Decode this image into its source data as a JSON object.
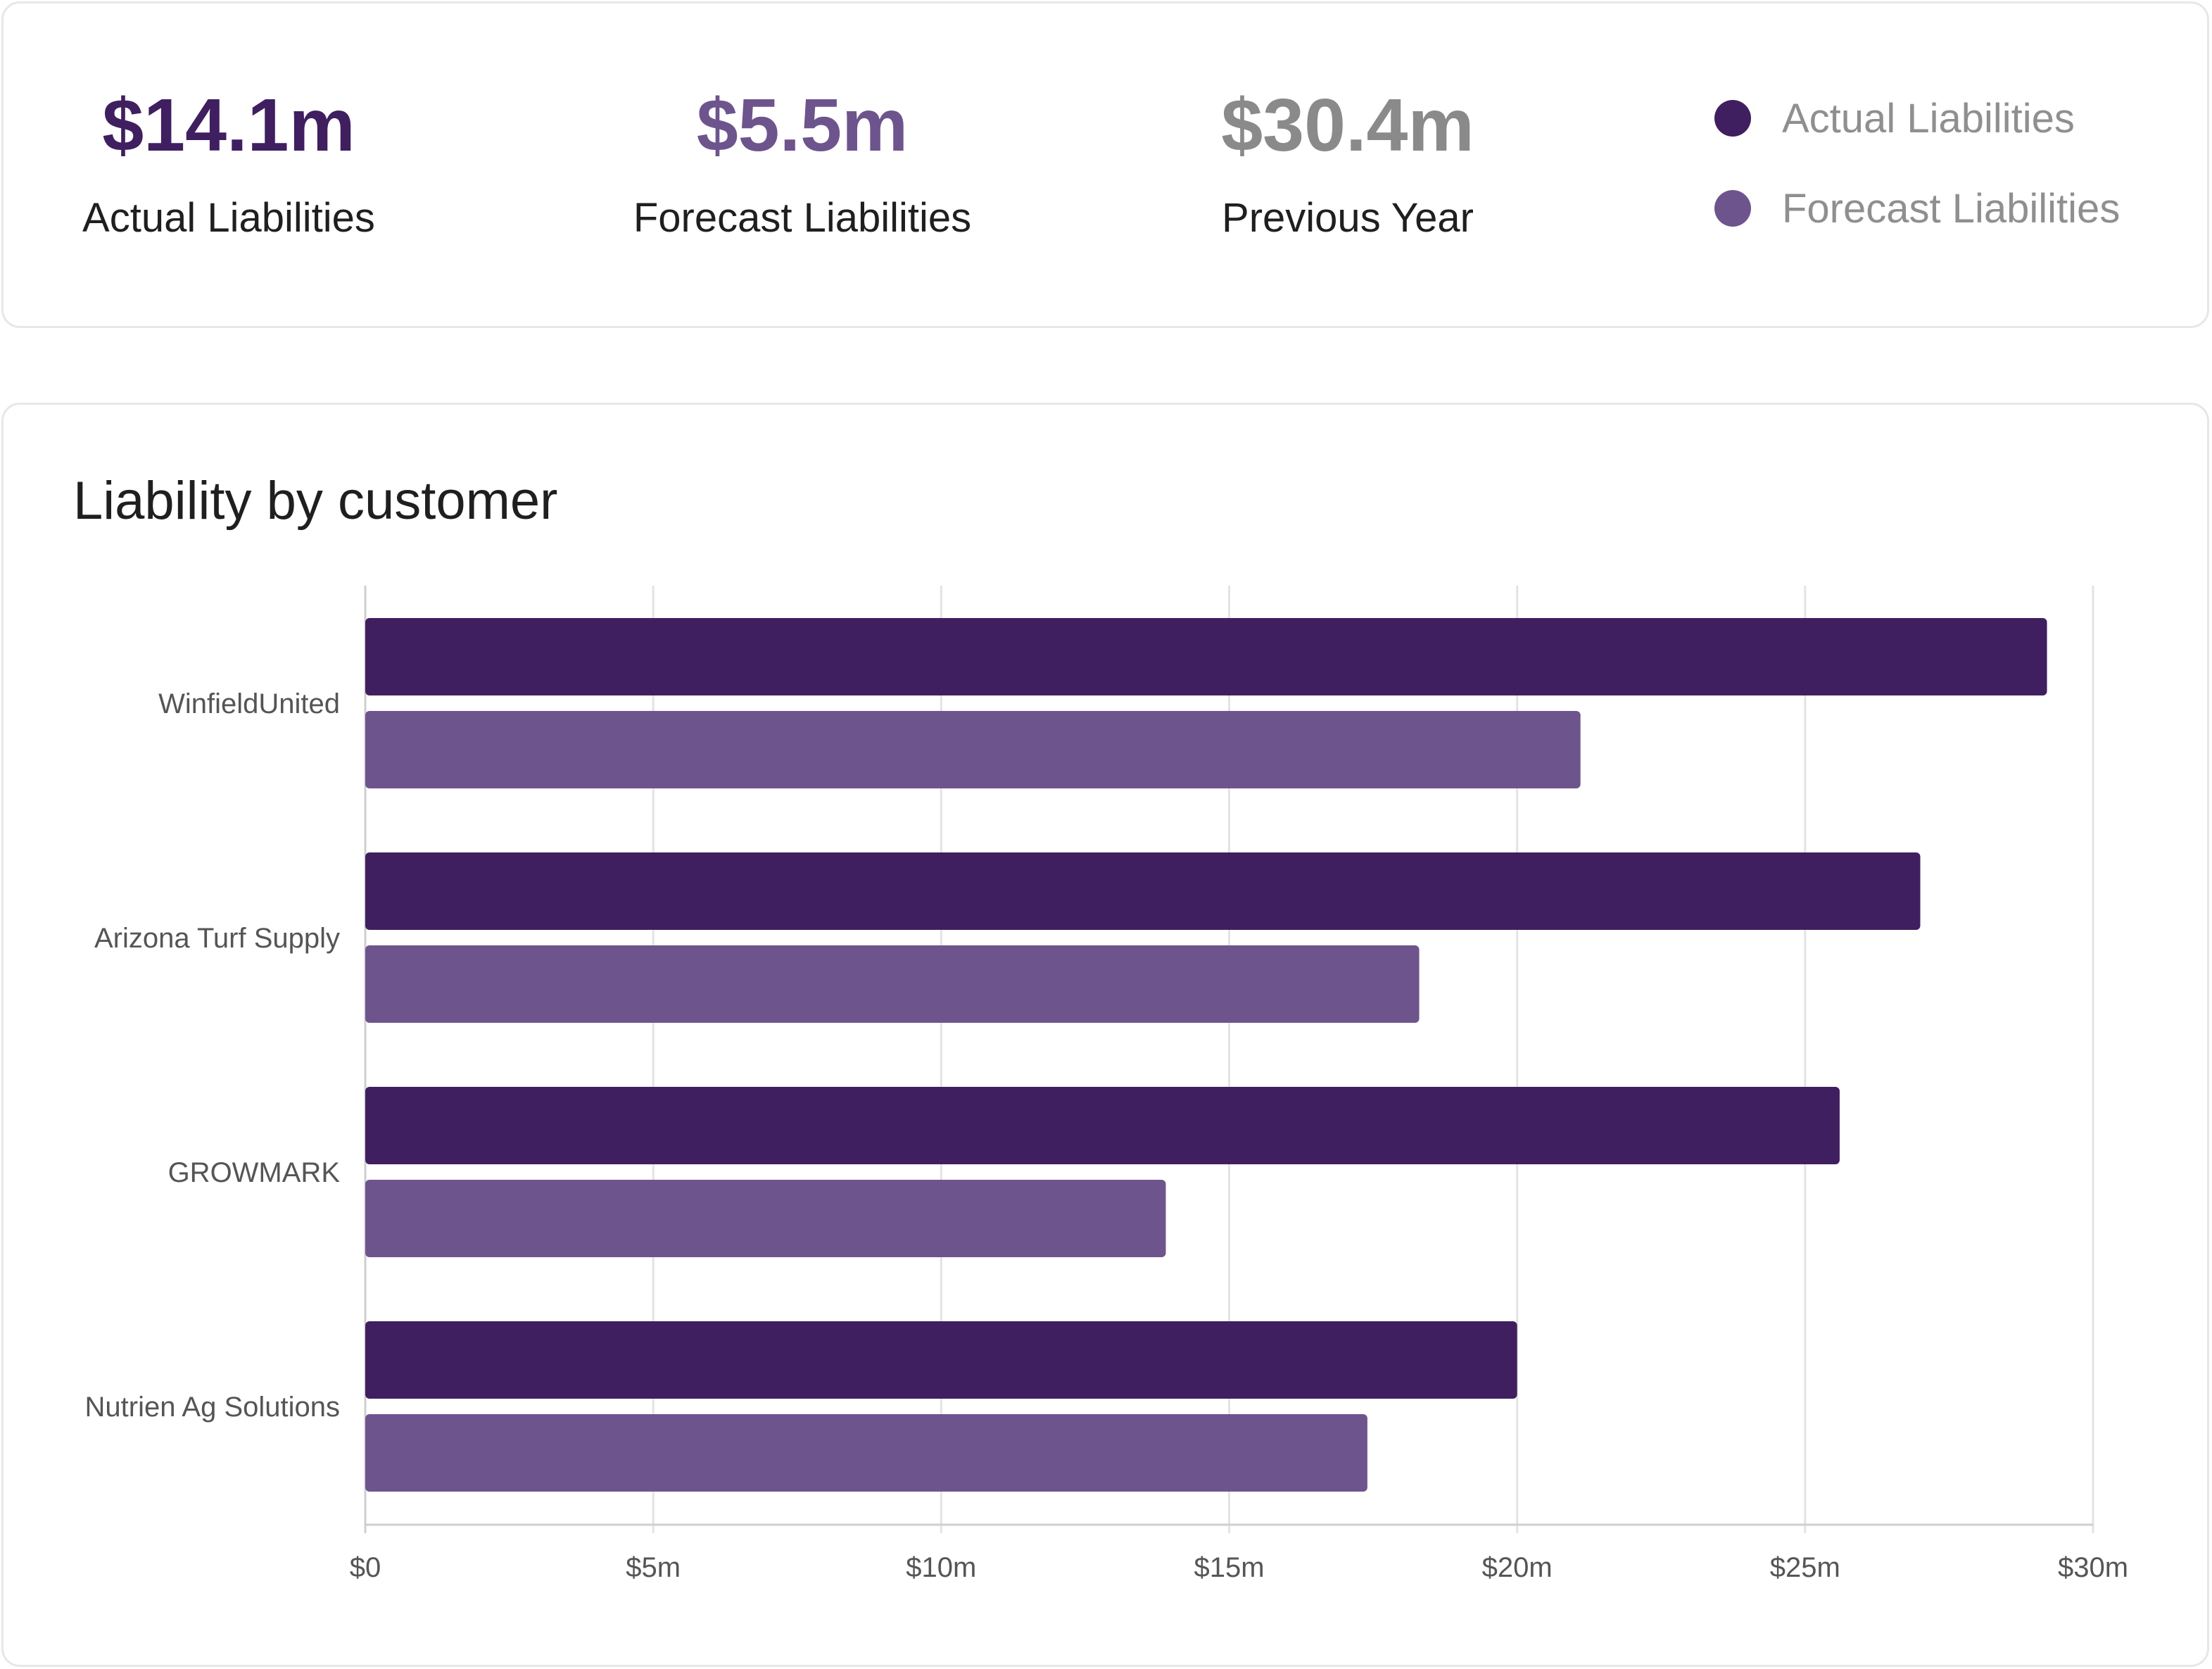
{
  "summary": {
    "kpis": [
      {
        "value": "$14.1m",
        "label": "Actual Liabilities",
        "color": "#3f1f5f"
      },
      {
        "value": "$5.5m",
        "label": "Forecast Liabilities",
        "color": "#6e548d"
      },
      {
        "value": "$30.4m",
        "label": "Previous Year",
        "color": "#8a8a8a"
      }
    ],
    "legend": [
      {
        "label": "Actual Liabilities",
        "color": "#3f1f5f"
      },
      {
        "label": "Forecast Liabilities",
        "color": "#6e548d"
      }
    ]
  },
  "chart_data": {
    "type": "bar",
    "orientation": "horizontal",
    "title": "Liability by customer",
    "categories": [
      "WinfieldUnited",
      "Arizona Turf Supply",
      "GROWMARK",
      "Nutrien Ag Solutions"
    ],
    "series": [
      {
        "name": "Actual Liabilities",
        "color": "#3f1f5f",
        "values": [
          29.2,
          27.0,
          25.6,
          20.0
        ]
      },
      {
        "name": "Forecast Liabilities",
        "color": "#6e548d",
        "values": [
          21.1,
          18.3,
          13.9,
          17.4
        ]
      }
    ],
    "xlim": [
      0,
      30
    ],
    "x_ticks": [
      {
        "value": 0,
        "label": "$0"
      },
      {
        "value": 5,
        "label": "$5m"
      },
      {
        "value": 10,
        "label": "$10m"
      },
      {
        "value": 15,
        "label": "$15m"
      },
      {
        "value": 20,
        "label": "$20m"
      },
      {
        "value": 25,
        "label": "$25m"
      },
      {
        "value": 30,
        "label": "$30m"
      }
    ],
    "grid": true,
    "legend_position": "top-right"
  }
}
